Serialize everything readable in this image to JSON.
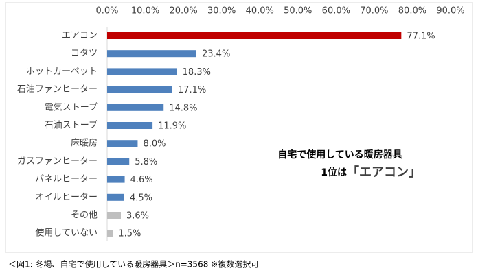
{
  "chart_data": {
    "type": "bar",
    "orientation": "horizontal",
    "categories": [
      "エアコン",
      "コタツ",
      "ホットカーペット",
      "石油ファンヒーター",
      "電気ストーブ",
      "石油ストーブ",
      "床暖房",
      "ガスファンヒーター",
      "パネルヒーター",
      "オイルヒーター",
      "その他",
      "使用していない"
    ],
    "values": [
      77.1,
      23.4,
      18.3,
      17.1,
      14.8,
      11.9,
      8.0,
      5.8,
      4.6,
      4.5,
      3.6,
      1.5
    ],
    "value_labels": [
      "77.1%",
      "23.4%",
      "18.3%",
      "17.1%",
      "14.8%",
      "11.9%",
      "8.0%",
      "5.8%",
      "4.6%",
      "4.5%",
      "3.6%",
      "1.5%"
    ],
    "colors": [
      "#c00000",
      "#4f81bd",
      "#4f81bd",
      "#4f81bd",
      "#4f81bd",
      "#4f81bd",
      "#4f81bd",
      "#4f81bd",
      "#4f81bd",
      "#4f81bd",
      "#bfbfbf",
      "#bfbfbf"
    ],
    "xlim": [
      0,
      90
    ],
    "xticks": [
      {
        "value": 0,
        "label": "0.0%"
      },
      {
        "value": 10,
        "label": "10.0%"
      },
      {
        "value": 20,
        "label": "20.0%"
      },
      {
        "value": 30,
        "label": "30.0%"
      },
      {
        "value": 40,
        "label": "40.0%"
      },
      {
        "value": 50,
        "label": "50.0%"
      },
      {
        "value": 60,
        "label": "60.0%"
      },
      {
        "value": 70,
        "label": "70.0%"
      },
      {
        "value": 80,
        "label": "80.0%"
      },
      {
        "value": 90,
        "label": "90.0%"
      }
    ],
    "annotation": {
      "line1": "自宅で使用している暖房器具",
      "line2": "1位は",
      "highlight": "「エアコン」",
      "highlight_color": "#ff0000"
    },
    "caption": "＜図1: 冬場、自宅で使用している暖房器具＞n=3568 ※複数選択可"
  }
}
